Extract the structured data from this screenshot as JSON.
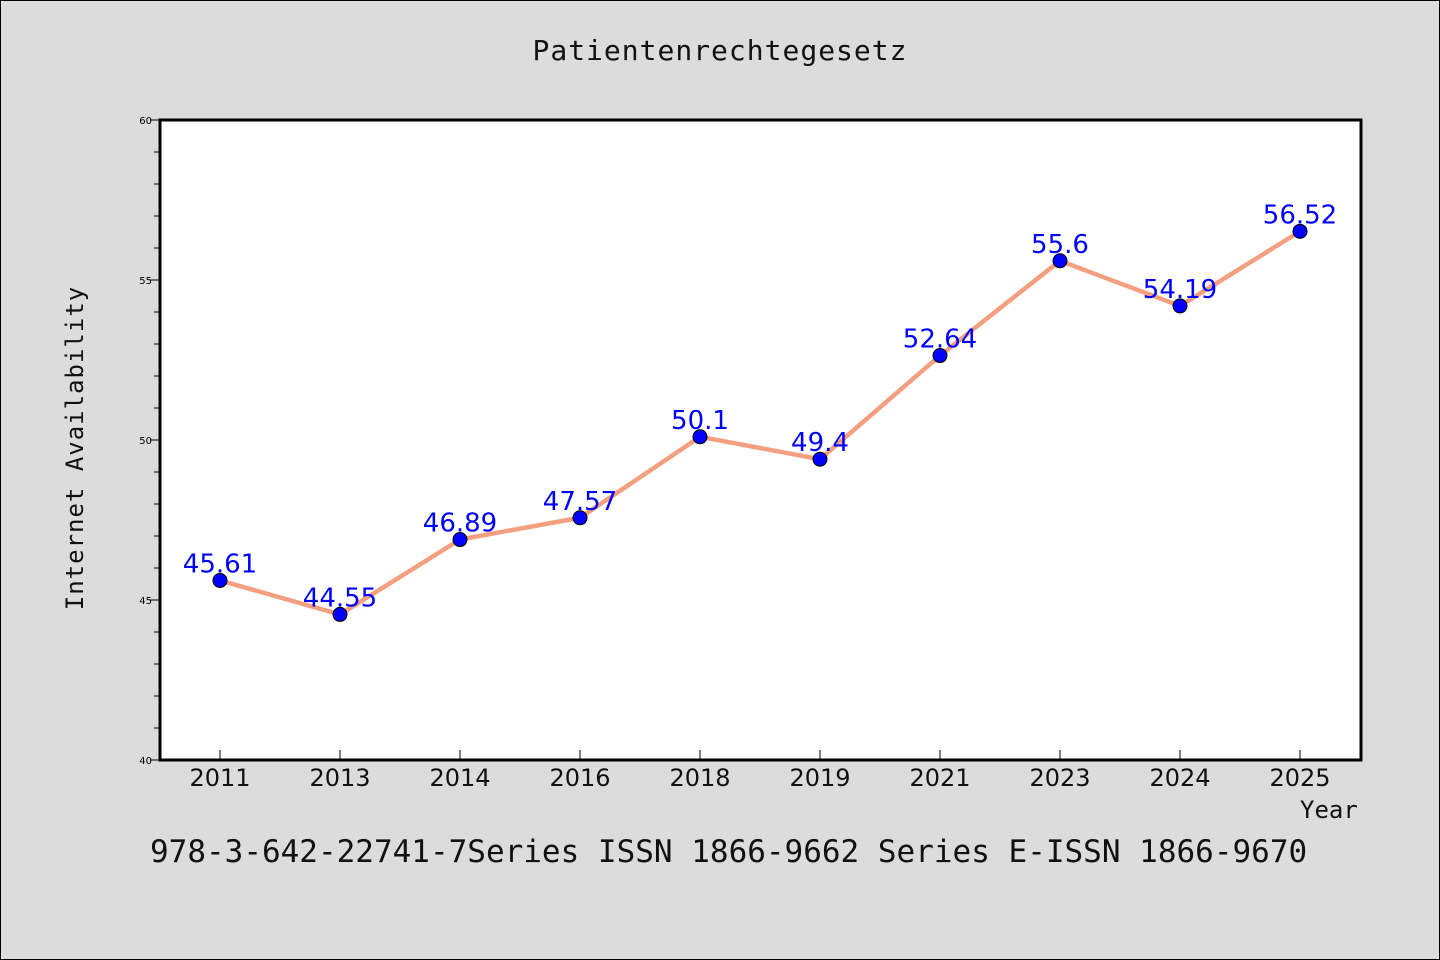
{
  "chart_data": {
    "type": "line",
    "title": "Patientenrechtegesetz",
    "xlabel": "Year",
    "ylabel": "Internet Availability",
    "categories": [
      "2011",
      "2013",
      "2014",
      "2016",
      "2018",
      "2019",
      "2021",
      "2023",
      "2024",
      "2025"
    ],
    "series": [
      {
        "values": [
          45.61,
          44.55,
          46.89,
          47.57,
          50.1,
          49.4,
          52.64,
          55.6,
          54.19,
          56.52
        ],
        "labels": [
          "45.61",
          "44.55",
          "46.89",
          "47.57",
          "50.1",
          "49.4",
          "52.64",
          "55.6",
          "54.19",
          "56.52"
        ],
        "line_color": "#f4a080",
        "marker_color": "#0000ff"
      }
    ],
    "ylim": [
      40,
      60
    ],
    "yticks": [
      "40",
      "45",
      "50",
      "55",
      "60"
    ],
    "grid": false,
    "legend": "none"
  },
  "footer": "978-3-642-22741-7Series ISSN 1866-9662 Series E-ISSN 1866-9670",
  "colors": {
    "background": "#dcdcdc",
    "plot_background": "#ffffff"
  }
}
